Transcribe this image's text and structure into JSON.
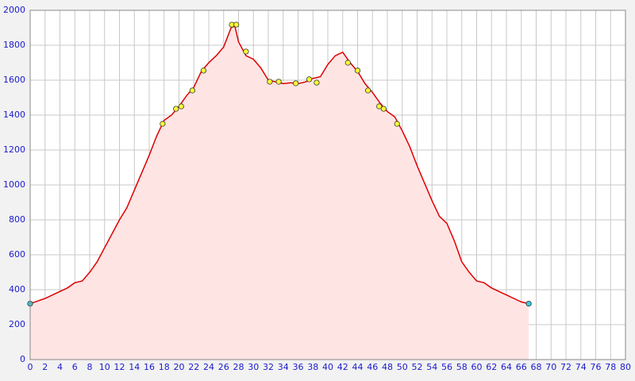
{
  "chart_data": {
    "type": "area",
    "x": [
      0,
      1,
      2,
      3,
      4,
      5,
      6,
      7,
      8,
      9,
      10,
      11,
      12,
      13,
      14,
      15,
      16,
      17,
      18,
      19,
      20,
      21,
      22,
      23,
      24,
      25,
      26,
      27,
      27.5,
      28,
      29,
      30,
      31,
      32,
      33,
      34,
      35,
      36,
      37,
      38,
      39,
      40,
      41,
      42,
      43,
      44,
      45,
      46,
      47,
      48,
      49,
      50,
      51,
      52,
      53,
      54,
      55,
      56,
      57,
      58,
      59,
      60,
      61,
      62,
      63,
      64,
      65,
      66,
      67
    ],
    "values": [
      320,
      335,
      350,
      370,
      390,
      410,
      440,
      450,
      500,
      560,
      640,
      720,
      800,
      870,
      970,
      1070,
      1170,
      1280,
      1370,
      1400,
      1450,
      1510,
      1560,
      1650,
      1700,
      1740,
      1790,
      1900,
      1910,
      1820,
      1740,
      1720,
      1670,
      1600,
      1590,
      1580,
      1585,
      1580,
      1590,
      1610,
      1620,
      1690,
      1740,
      1760,
      1700,
      1650,
      1580,
      1530,
      1470,
      1420,
      1390,
      1310,
      1220,
      1110,
      1010,
      910,
      820,
      780,
      680,
      560,
      500,
      450,
      440,
      410,
      390,
      370,
      350,
      330,
      320
    ],
    "color": "#dd0000",
    "fill_color": "#ffe4e4",
    "waypoints": {
      "color": "#ffff33",
      "x": [
        17.8,
        19.6,
        20.3,
        21.8,
        23.3,
        27.1,
        27.7,
        29.0,
        32.2,
        33.4,
        35.7,
        37.5,
        38.5,
        42.7,
        44.0,
        45.4,
        46.9,
        47.5,
        49.3
      ],
      "values": [
        1350,
        1436,
        1450,
        1541,
        1655,
        1918,
        1918,
        1764,
        1591,
        1591,
        1582,
        1605,
        1586,
        1700,
        1655,
        1541,
        1450,
        1436,
        1350
      ]
    },
    "endpoints": {
      "color": "#33ccdd",
      "x": [
        0,
        67
      ],
      "values": [
        320,
        320
      ]
    },
    "xlim": [
      0,
      80
    ],
    "xticks": [
      0,
      2,
      4,
      6,
      8,
      10,
      12,
      14,
      16,
      18,
      20,
      22,
      24,
      26,
      28,
      30,
      32,
      34,
      36,
      38,
      40,
      42,
      44,
      46,
      48,
      50,
      52,
      54,
      56,
      58,
      60,
      62,
      64,
      66,
      68,
      70,
      72,
      74,
      76,
      78,
      80
    ],
    "ylim": [
      0,
      2000
    ],
    "yticks": [
      0,
      200,
      400,
      600,
      800,
      1000,
      1200,
      1400,
      1600,
      1800,
      2000
    ],
    "grid": true
  }
}
